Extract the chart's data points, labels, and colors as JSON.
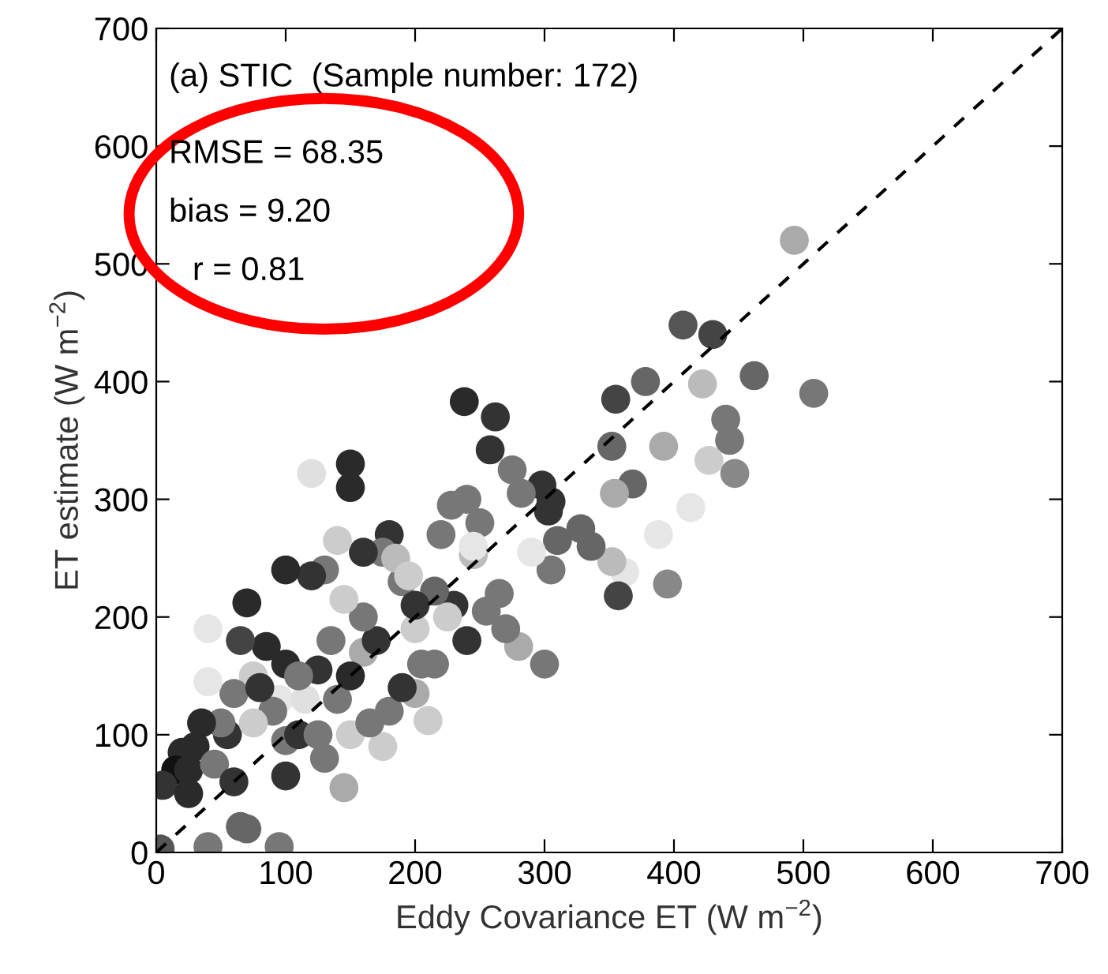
{
  "chart_data": {
    "type": "scatter",
    "xlabel": "Eddy Covariance ET (W m$^{−2}$)",
    "ylabel": "ET estimate (W m$^{−2}$)",
    "annotations": [
      "(a) STIC  (Sample number: 172)",
      "RMSE = 68.35",
      "bias = 9.20",
      "r = 0.81"
    ],
    "xlim": [
      0,
      700
    ],
    "ylim": [
      0,
      700
    ],
    "xticks": [
      0,
      100,
      200,
      300,
      400,
      500,
      600,
      700
    ],
    "yticks": [
      0,
      100,
      200,
      300,
      400,
      500,
      600,
      700
    ],
    "grid": false,
    "legend": false,
    "marker": "circle",
    "series": [
      {
        "type": "line",
        "line_style": "dashed",
        "marker": "none",
        "color": "#000000",
        "x": [
          0,
          700
        ],
        "values": [
          0,
          700
        ]
      },
      {
        "x": [
          493,
          508,
          462,
          440,
          443,
          430,
          407,
          378,
          422,
          447,
          427,
          413,
          392,
          368,
          355,
          352,
          388,
          362,
          352,
          357,
          395,
          354,
          336,
          328,
          305,
          298,
          303,
          282,
          275,
          262,
          258,
          238,
          245,
          305,
          300,
          280,
          310,
          250,
          240,
          228,
          220,
          230,
          215,
          205,
          210,
          200,
          190,
          180,
          175,
          185,
          160,
          150,
          150,
          120,
          140,
          130,
          120,
          100,
          100,
          95,
          100,
          110,
          100,
          85,
          75,
          70,
          65,
          60,
          40,
          40,
          55,
          50,
          35,
          30,
          20,
          15,
          25,
          5,
          25,
          45,
          60,
          70,
          65,
          40,
          95,
          3,
          130,
          140,
          150,
          160,
          170,
          175,
          165,
          180,
          190,
          200,
          215,
          225,
          240,
          255,
          265,
          270,
          200,
          160,
          150,
          145,
          135,
          125,
          115,
          110,
          90,
          75,
          80,
          125,
          145,
          195,
          245,
          290
        ],
        "values": [
          520,
          390,
          405,
          368,
          350,
          440,
          448,
          400,
          398,
          322,
          333,
          293,
          345,
          313,
          385,
          345,
          270,
          238,
          247,
          218,
          228,
          305,
          260,
          275,
          298,
          312,
          290,
          305,
          325,
          370,
          342,
          383,
          253,
          240,
          160,
          175,
          265,
          280,
          300,
          295,
          270,
          210,
          222,
          160,
          112,
          135,
          230,
          270,
          255,
          250,
          255,
          330,
          310,
          322,
          265,
          240,
          235,
          240,
          160,
          130,
          95,
          100,
          65,
          175,
          150,
          212,
          180,
          135,
          145,
          190,
          100,
          110,
          110,
          90,
          85,
          70,
          70,
          57,
          50,
          75,
          60,
          20,
          22,
          5,
          5,
          3,
          80,
          130,
          100,
          170,
          180,
          90,
          110,
          120,
          140,
          190,
          160,
          200,
          180,
          205,
          220,
          190,
          210,
          200,
          150,
          215,
          180,
          155,
          130,
          150,
          120,
          110,
          140,
          100,
          55,
          235,
          260,
          255
        ],
        "colors": [
          "#aaaaaa",
          "#777777",
          "#666666",
          "#777777",
          "#777777",
          "#444444",
          "#555555",
          "#666666",
          "#bbbbbb",
          "#888888",
          "#cccccc",
          "#e6e6e6",
          "#aaaaaa",
          "#666666",
          "#444444",
          "#666666",
          "#e6e6e6",
          "#e6e6e6",
          "#bbbbbb",
          "#444444",
          "#888888",
          "#aaaaaa",
          "#666666",
          "#666666",
          "#333333",
          "#333333",
          "#333333",
          "#777777",
          "#777777",
          "#333333",
          "#333333",
          "#2a2a2a",
          "#bbbbbb",
          "#777777",
          "#777777",
          "#aaaaaa",
          "#666666",
          "#777777",
          "#777777",
          "#777777",
          "#777777",
          "#333333",
          "#666666",
          "#777777",
          "#cccccc",
          "#aaaaaa",
          "#777777",
          "#333333",
          "#777777",
          "#bbbbbb",
          "#333333",
          "#2a2a2a",
          "#2a2a2a",
          "#e0e0e0",
          "#cccccc",
          "#777777",
          "#333333",
          "#2a2a2a",
          "#2a2a2a",
          "#e6e6e6",
          "#777777",
          "#333333",
          "#333333",
          "#2a2a2a",
          "#cccccc",
          "#2a2a2a",
          "#444444",
          "#777777",
          "#e6e6e6",
          "#e6e6e6",
          "#333333",
          "#777777",
          "#2a2a2a",
          "#2a2a2a",
          "#2a2a2a",
          "#111111",
          "#2a2a2a",
          "#333333",
          "#2a2a2a",
          "#777777",
          "#333333",
          "#666666",
          "#666666",
          "#777777",
          "#777777",
          "#555555",
          "#777777",
          "#777777",
          "#cccccc",
          "#aaaaaa",
          "#333333",
          "#cccccc",
          "#777777",
          "#777777",
          "#333333",
          "#cccccc",
          "#777777",
          "#cccccc",
          "#333333",
          "#777777",
          "#777777",
          "#777777",
          "#333333",
          "#777777",
          "#2a2a2a",
          "#cccccc",
          "#777777",
          "#333333",
          "#e0e0e0",
          "#777777",
          "#777777",
          "#cccccc",
          "#333333",
          "#777777",
          "#aaaaaa",
          "#cccccc",
          "#e6e6e6",
          "#e6e6e6"
        ]
      }
    ]
  }
}
